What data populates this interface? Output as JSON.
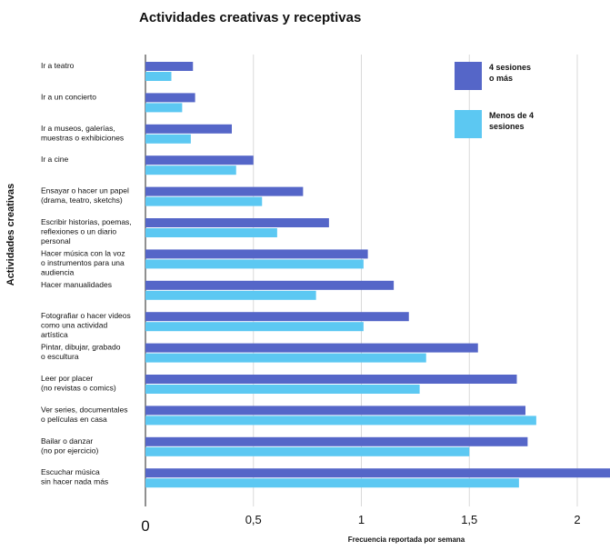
{
  "chart_data": {
    "type": "bar",
    "orientation": "horizontal",
    "title": "Actividades creativas y receptivas",
    "xlabel": "Frecuencia reportada por semana",
    "ylabel": "Actividades creativas",
    "xlim": [
      0,
      2.3
    ],
    "xticks": [
      0,
      0.5,
      1,
      1.5,
      2
    ],
    "xtick_labels": [
      "0",
      "0,5",
      "1",
      "1,5",
      "2"
    ],
    "grid": "vertical",
    "legend_position": "top-right",
    "categories": [
      [
        "Ir a teatro"
      ],
      [
        "Ir a un concierto"
      ],
      [
        "Ir a museos, galerías,",
        "muestras o exhibiciones"
      ],
      [
        "Ir a cine"
      ],
      [
        "Ensayar o hacer un papel",
        "(drama, teatro, sketchs)"
      ],
      [
        "Escribir historias, poemas,",
        "reflexiones o un diario",
        "personal"
      ],
      [
        "Hacer música con la voz",
        "o instrumentos para una",
        "audiencia"
      ],
      [
        "Hacer manualidades"
      ],
      [
        "Fotografiar o hacer videos",
        "como una actividad",
        "artística"
      ],
      [
        "Pintar, dibujar, grabado",
        "o escultura"
      ],
      [
        "Leer por placer",
        "(no revistas o comics)"
      ],
      [
        "Ver series, documentales",
        "o películas en casa"
      ],
      [
        "Bailar o danzar",
        "(no por ejercicio)"
      ],
      [
        "Escuchar música",
        "sin hacer nada más"
      ]
    ],
    "series": [
      {
        "name": [
          "4 sesiones",
          "o más"
        ],
        "color": "#5566c8",
        "values": [
          0.22,
          0.23,
          0.4,
          0.5,
          0.73,
          0.85,
          1.03,
          1.15,
          1.22,
          1.54,
          1.72,
          1.76,
          1.77,
          2.22
        ]
      },
      {
        "name": [
          "Menos de 4",
          "sesiones"
        ],
        "color": "#5cc8f2",
        "values": [
          0.12,
          0.17,
          0.21,
          0.42,
          0.54,
          0.61,
          1.01,
          0.79,
          1.01,
          1.3,
          1.27,
          1.81,
          1.5,
          1.73
        ]
      }
    ]
  }
}
